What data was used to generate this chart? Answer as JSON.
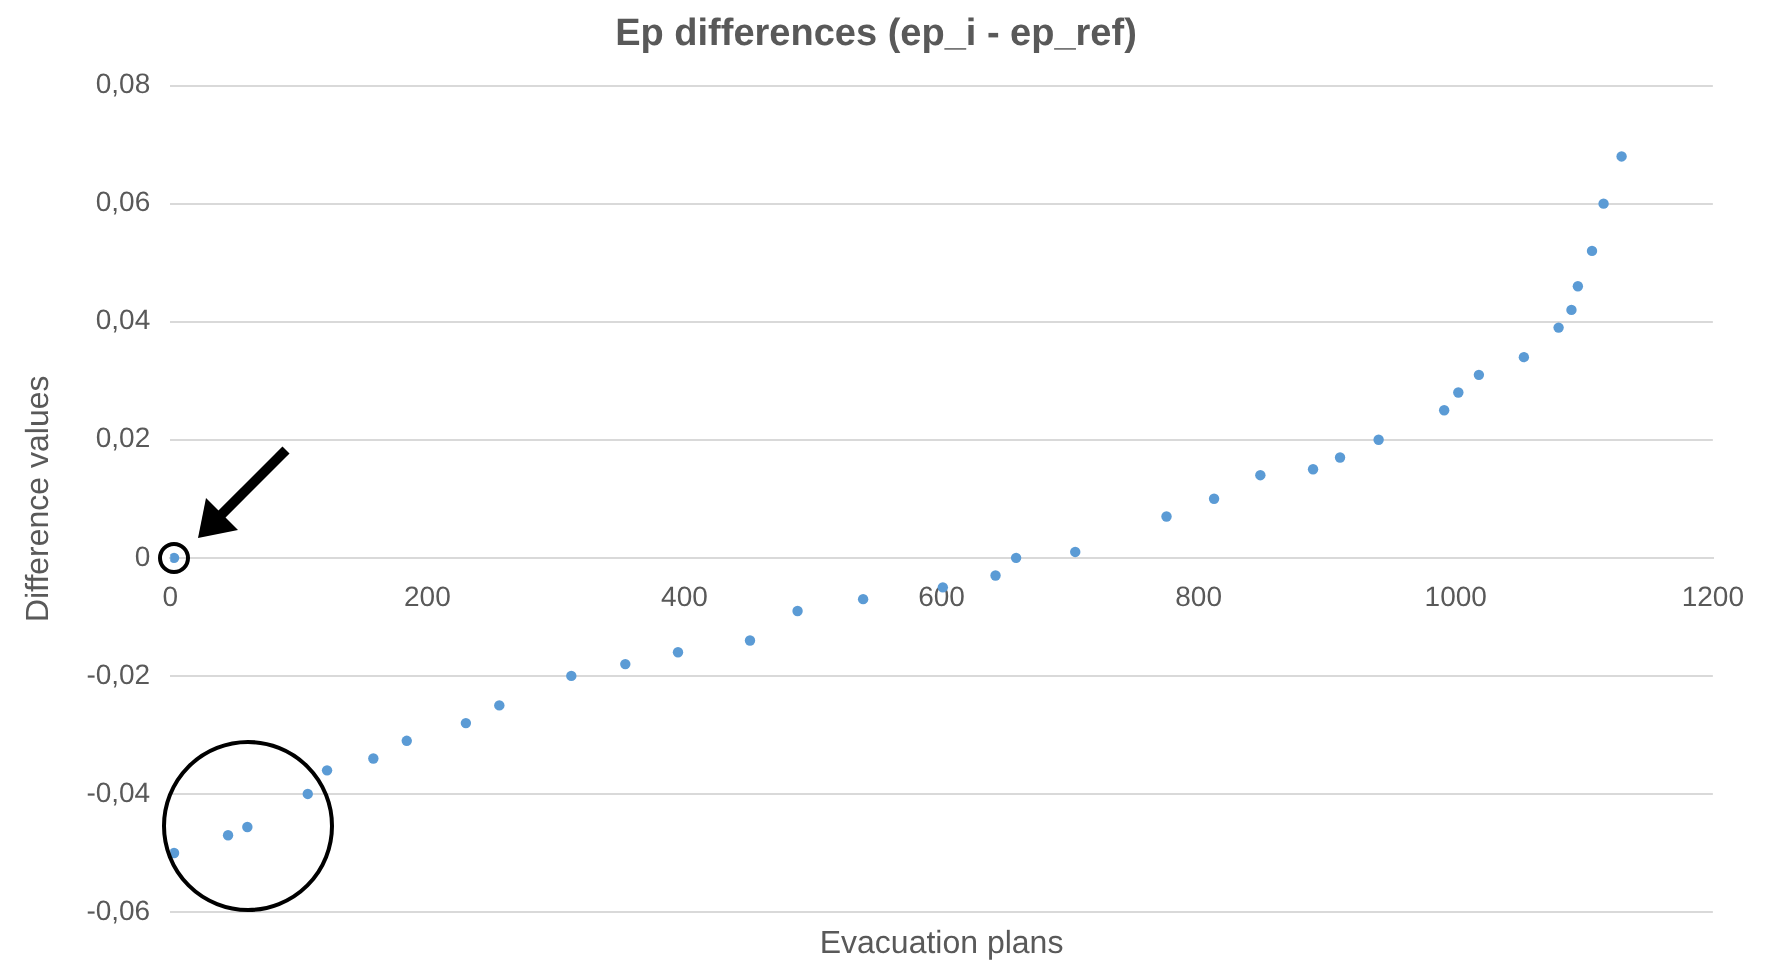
{
  "chart_data": {
    "type": "scatter",
    "title": "Ep differences (ep_i - ep_ref)",
    "xlabel": "Evacuation plans",
    "ylabel": "Difference values",
    "series": [
      {
        "color": "#5b9bd5",
        "x": [
          3,
          3,
          45,
          60,
          107,
          122,
          158,
          184,
          230,
          256,
          312,
          354,
          395,
          451,
          488,
          539,
          601,
          642,
          658,
          704,
          775,
          812,
          848,
          889,
          910,
          940,
          991,
          1002,
          1018,
          1053,
          1080,
          1090,
          1095,
          1106,
          1115,
          1129
        ],
        "values": [
          0,
          -0.05,
          -0.047,
          -0.0456,
          -0.04,
          -0.036,
          -0.034,
          -0.031,
          -0.028,
          -0.025,
          -0.02,
          -0.018,
          -0.016,
          -0.014,
          -0.009,
          -0.007,
          -0.005,
          -0.003,
          0,
          0.001,
          0.007,
          0.01,
          0.014,
          0.015,
          0.017,
          0.02,
          0.025,
          0.028,
          0.031,
          0.034,
          0.039,
          0.042,
          0.046,
          0.052,
          0.06,
          0.068
        ]
      }
    ],
    "marker": "circle",
    "xlim": [
      0,
      1200
    ],
    "xticks": [
      0,
      200,
      400,
      600,
      800,
      1000,
      1200
    ],
    "ylim": [
      -0.06,
      0.08
    ],
    "yticks": [
      {
        "value": -0.06,
        "label": "-0,06"
      },
      {
        "value": -0.04,
        "label": "-0,04"
      },
      {
        "value": -0.02,
        "label": "-0,02"
      },
      {
        "value": 0,
        "label": "0"
      },
      {
        "value": 0.02,
        "label": "0,02"
      },
      {
        "value": 0.04,
        "label": "0,04"
      },
      {
        "value": 0.06,
        "label": "0,06"
      },
      {
        "value": 0.08,
        "label": "0,08"
      }
    ],
    "grid": "y",
    "legend": false
  }
}
